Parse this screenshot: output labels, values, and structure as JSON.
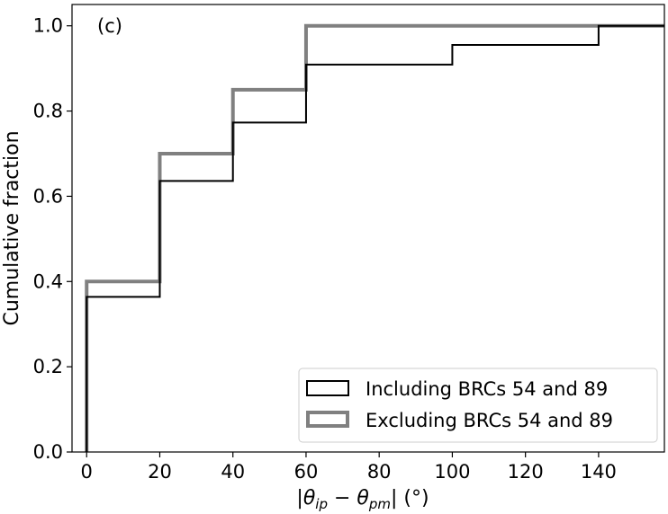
{
  "chart_data": {
    "type": "line",
    "subtype": "step-cdf",
    "panel_label": "(c)",
    "xlabel": "|θ_ip − θ_pm| (°)",
    "xlabel_parts": {
      "prefix": "|θ",
      "sub1": "ip",
      "minus": " − θ",
      "sub2": "pm",
      "suffix": "| (°)"
    },
    "ylabel": "Cumulative fraction",
    "xlim": [
      -4,
      158
    ],
    "ylim": [
      0,
      1.05
    ],
    "x_ticks": [
      0,
      20,
      40,
      60,
      80,
      100,
      120,
      140
    ],
    "x_tick_labels": [
      "0",
      "20",
      "40",
      "60",
      "80",
      "100",
      "120",
      "140"
    ],
    "y_ticks": [
      0.0,
      0.2,
      0.4,
      0.6,
      0.8,
      1.0
    ],
    "y_tick_labels": [
      "0.0",
      "0.2",
      "0.4",
      "0.6",
      "0.8",
      "1.0"
    ],
    "grid": false,
    "legend_position": "bottom-right",
    "series": [
      {
        "name": "Including BRCs 54 and 89",
        "color": "#000000",
        "x": [
          0,
          0,
          20,
          20,
          40,
          40,
          60,
          60,
          100,
          100,
          140,
          140,
          158
        ],
        "y": [
          0,
          0.364,
          0.364,
          0.636,
          0.636,
          0.773,
          0.773,
          0.909,
          0.909,
          0.955,
          0.955,
          1.0,
          1.0
        ]
      },
      {
        "name": "Excluding BRCs 54 and 89",
        "color": "#808080",
        "x": [
          0,
          0,
          20,
          20,
          40,
          40,
          60,
          60,
          140,
          140,
          158
        ],
        "y": [
          0,
          0.4,
          0.4,
          0.7,
          0.7,
          0.85,
          0.85,
          1.0,
          1.0,
          1.0,
          1.0
        ]
      }
    ]
  }
}
